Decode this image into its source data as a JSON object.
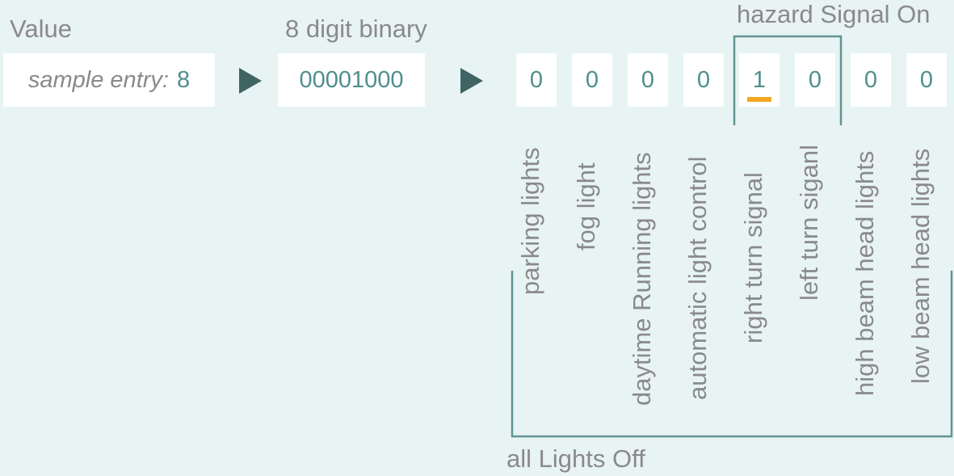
{
  "headings": {
    "value": "Value",
    "binary": "8 digit binary",
    "hazard": "hazard Signal On",
    "all_off": "all Lights Off"
  },
  "sample": {
    "label": "sample entry:",
    "value": "8"
  },
  "binary_value": "00001000",
  "bits": [
    {
      "bit": "0",
      "label": "parking lights",
      "highlighted": false
    },
    {
      "bit": "0",
      "label": "fog light",
      "highlighted": false
    },
    {
      "bit": "0",
      "label": "daytime Running lights",
      "highlighted": false
    },
    {
      "bit": "0",
      "label": "automatic light control",
      "highlighted": false
    },
    {
      "bit": "1",
      "label": "right  turn signal",
      "highlighted": true
    },
    {
      "bit": "0",
      "label": "left turn siganl",
      "highlighted": false
    },
    {
      "bit": "0",
      "label": "high beam head lights",
      "highlighted": false
    },
    {
      "bit": "0",
      "label": "low beam head lights",
      "highlighted": false
    }
  ],
  "colors": {
    "background": "#e8f3f3",
    "box": "#ffffff",
    "value_text": "#4e8f8b",
    "label_text": "#8a8a8a",
    "arrow": "#3f6464",
    "bracket": "#5f9592",
    "highlight": "#f5a623"
  }
}
